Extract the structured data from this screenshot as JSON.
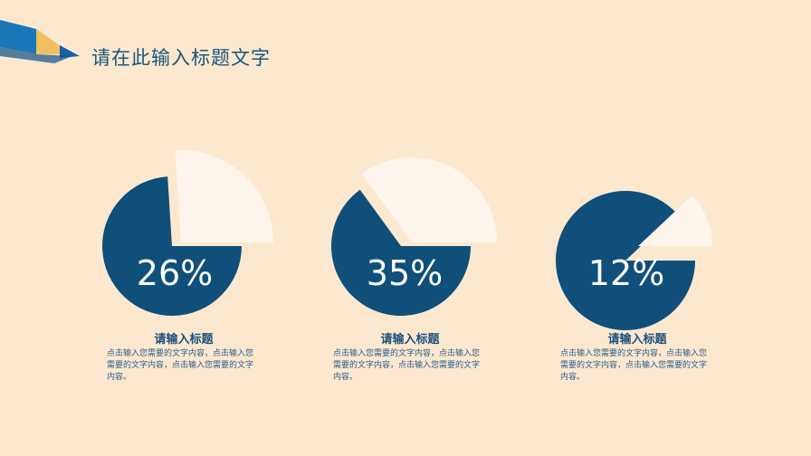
{
  "header": {
    "title": "请在此输入标题文字",
    "logo_icon": "pencil-icon"
  },
  "colors": {
    "background": "#fbe8cf",
    "pie_main": "#0f4f7a",
    "pie_slice": "#fdf5ec",
    "text": "#1b4f7c"
  },
  "chart_data": [
    {
      "type": "pie",
      "values": [
        26,
        74
      ],
      "label": "26%",
      "highlight": "exploded"
    },
    {
      "type": "pie",
      "values": [
        35,
        65
      ],
      "label": "35%",
      "highlight": "exploded"
    },
    {
      "type": "pie",
      "values": [
        12,
        88
      ],
      "label": "12%",
      "highlight": "exploded"
    }
  ],
  "items": [
    {
      "title": "请输入标题",
      "body": "点击输入您需要的文字内容，点击输入您需要的文字内容，点击输入您需要的文字内容。"
    },
    {
      "title": "请输入标题",
      "body": "点击输入您需要的文字内容，点击输入您需要的文字内容，点击输入您需要的文字内容。"
    },
    {
      "title": "请输入标题",
      "body": "点击输入您需要的文字内容，点击输入您需要的文字内容，点击输入您需要的文字内容。"
    }
  ]
}
